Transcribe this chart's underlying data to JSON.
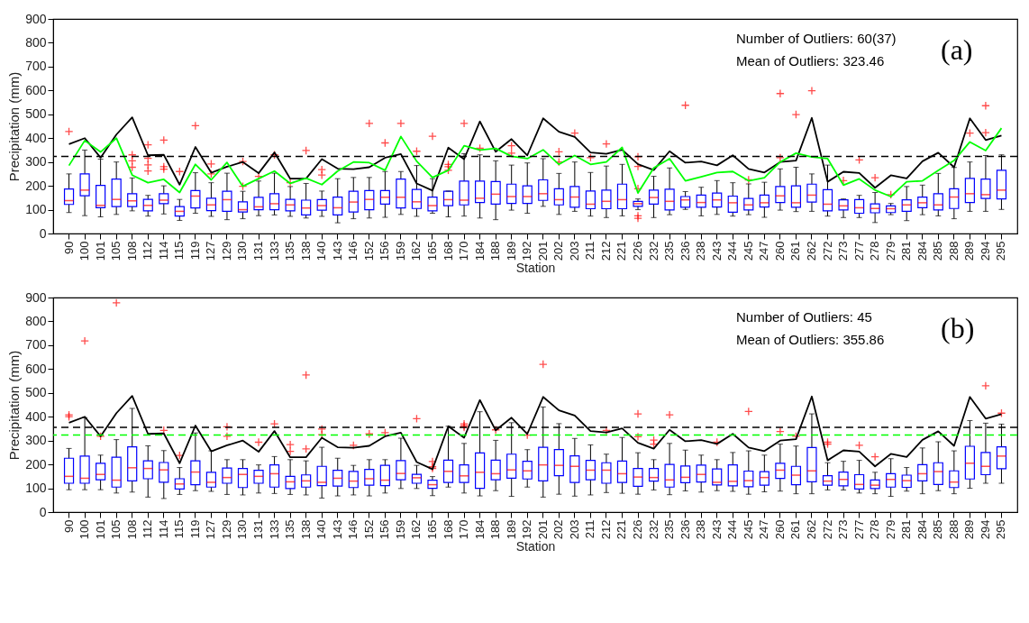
{
  "chart_data": [
    {
      "type": "box",
      "xlabel": "Station",
      "ylabel": "Precipitation (mm)",
      "ylim": [
        0,
        900
      ],
      "yticks": [
        0,
        100,
        200,
        300,
        400,
        500,
        600,
        700,
        800,
        900
      ],
      "grid": false,
      "categories": [
        "90",
        "100",
        "101",
        "105",
        "108",
        "112",
        "114",
        "115",
        "119",
        "127",
        "129",
        "130",
        "131",
        "133",
        "135",
        "138",
        "140",
        "143",
        "146",
        "152",
        "156",
        "159",
        "162",
        "165",
        "168",
        "170",
        "184",
        "188",
        "189",
        "192",
        "201",
        "202",
        "203",
        "211",
        "212",
        "221",
        "226",
        "232",
        "235",
        "236",
        "238",
        "243",
        "244",
        "245",
        "247",
        "260",
        "261",
        "262",
        "272",
        "273",
        "277",
        "278",
        "279",
        "281",
        "284",
        "285",
        "288",
        "289",
        "294",
        "295"
      ],
      "series": [
        {
          "type": "box",
          "color": "#0000ff",
          "boxes": [
            {
              "low": 88,
              "q1": 122,
              "median": 138,
              "q3": 187,
              "high": 250,
              "outliers": [
                428
              ]
            },
            {
              "low": 75,
              "q1": 158,
              "median": 182,
              "q3": 250,
              "high": 350
            },
            {
              "low": 70,
              "q1": 108,
              "median": 118,
              "q3": 202,
              "high": 312
            },
            {
              "low": 80,
              "q1": 113,
              "median": 143,
              "q3": 228,
              "high": 300
            },
            {
              "low": 95,
              "q1": 113,
              "median": 137,
              "q3": 167,
              "high": 233,
              "outliers": [
                330,
                305,
                278
              ]
            },
            {
              "low": 73,
              "q1": 95,
              "median": 118,
              "q3": 143,
              "high": 160,
              "outliers": [
                372,
                315,
                288,
                262
              ]
            },
            {
              "low": 82,
              "q1": 125,
              "median": 140,
              "q3": 167,
              "high": 200,
              "outliers": [
                392,
                280,
                270
              ]
            },
            {
              "low": 55,
              "q1": 73,
              "median": 93,
              "q3": 113,
              "high": 143,
              "outliers": [
                260
              ]
            },
            {
              "low": 85,
              "q1": 107,
              "median": 157,
              "q3": 180,
              "high": 255,
              "outliers": [
                452
              ]
            },
            {
              "low": 72,
              "q1": 96,
              "median": 120,
              "q3": 148,
              "high": 213,
              "outliers": [
                292,
                250
              ]
            },
            {
              "low": 58,
              "q1": 93,
              "median": 142,
              "q3": 177,
              "high": 253
            },
            {
              "low": 62,
              "q1": 90,
              "median": 100,
              "q3": 133,
              "high": 177,
              "outliers": [
                302,
                198
              ]
            },
            {
              "low": 75,
              "q1": 100,
              "median": 112,
              "q3": 152,
              "high": 220,
              "outliers": [
                240
              ]
            },
            {
              "low": 78,
              "q1": 100,
              "median": 125,
              "q3": 167,
              "high": 253,
              "outliers": [
                330
              ]
            },
            {
              "low": 72,
              "q1": 95,
              "median": 120,
              "q3": 143,
              "high": 197,
              "outliers": [
                213
              ]
            },
            {
              "low": 65,
              "q1": 78,
              "median": 107,
              "q3": 140,
              "high": 210,
              "outliers": [
                348
              ]
            },
            {
              "low": 72,
              "q1": 98,
              "median": 117,
              "q3": 142,
              "high": 178,
              "outliers": [
                268,
                245
              ]
            },
            {
              "low": 45,
              "q1": 78,
              "median": 108,
              "q3": 153,
              "high": 230
            },
            {
              "low": 62,
              "q1": 90,
              "median": 132,
              "q3": 177,
              "high": 235
            },
            {
              "low": 65,
              "q1": 100,
              "median": 143,
              "q3": 180,
              "high": 235,
              "outliers": [
                462
              ]
            },
            {
              "low": 68,
              "q1": 123,
              "median": 152,
              "q3": 180,
              "high": 260,
              "outliers": [
                380
              ]
            },
            {
              "low": 80,
              "q1": 107,
              "median": 152,
              "q3": 228,
              "high": 260,
              "outliers": [
                462
              ]
            },
            {
              "low": 72,
              "q1": 105,
              "median": 133,
              "q3": 185,
              "high": 285,
              "outliers": [
                345
              ]
            },
            {
              "low": 85,
              "q1": 95,
              "median": 117,
              "q3": 153,
              "high": 230,
              "outliers": [
                408
              ]
            },
            {
              "low": 70,
              "q1": 117,
              "median": 142,
              "q3": 177,
              "high": 178,
              "outliers": [
                290,
                280,
                265
              ]
            },
            {
              "low": 73,
              "q1": 120,
              "median": 140,
              "q3": 220,
              "high": 335,
              "outliers": [
                462
              ]
            },
            {
              "low": 65,
              "q1": 130,
              "median": 148,
              "q3": 220,
              "high": 330,
              "outliers": [
                358
              ]
            },
            {
              "low": 58,
              "q1": 123,
              "median": 165,
              "q3": 218,
              "high": 305
            },
            {
              "low": 98,
              "q1": 126,
              "median": 155,
              "q3": 207,
              "high": 287,
              "outliers": [
                368,
                337
              ]
            },
            {
              "low": 85,
              "q1": 126,
              "median": 155,
              "q3": 200,
              "high": 296
            },
            {
              "low": 114,
              "q1": 139,
              "median": 167,
              "q3": 225,
              "high": 314
            },
            {
              "low": 80,
              "q1": 120,
              "median": 142,
              "q3": 188,
              "high": 252,
              "outliers": [
                343,
                300
              ]
            },
            {
              "low": 93,
              "q1": 110,
              "median": 153,
              "q3": 197,
              "high": 300,
              "outliers": [
                421
              ]
            },
            {
              "low": 73,
              "q1": 104,
              "median": 123,
              "q3": 178,
              "high": 256,
              "outliers": [
                318
              ]
            },
            {
              "low": 67,
              "q1": 104,
              "median": 135,
              "q3": 182,
              "high": 283,
              "outliers": [
                376
              ]
            },
            {
              "low": 74,
              "q1": 104,
              "median": 142,
              "q3": 207,
              "high": 290
            },
            {
              "low": 100,
              "q1": 114,
              "median": 125,
              "q3": 135,
              "high": 145,
              "outliers": [
                322,
                281,
                188,
                74,
                64
              ]
            },
            {
              "low": 67,
              "q1": 123,
              "median": 151,
              "q3": 182,
              "high": 240
            },
            {
              "low": 79,
              "q1": 99,
              "median": 135,
              "q3": 186,
              "high": 275
            },
            {
              "low": 101,
              "q1": 110,
              "median": 141,
              "q3": 155,
              "high": 176,
              "outliers": [
                538
              ]
            },
            {
              "low": 74,
              "q1": 110,
              "median": 130,
              "q3": 161,
              "high": 194
            },
            {
              "low": 80,
              "q1": 111,
              "median": 141,
              "q3": 170,
              "high": 222
            },
            {
              "low": 73,
              "q1": 89,
              "median": 129,
              "q3": 157,
              "high": 213
            },
            {
              "low": 79,
              "q1": 99,
              "median": 120,
              "q3": 147,
              "high": 208,
              "outliers": [
                225
              ]
            },
            {
              "low": 68,
              "q1": 111,
              "median": 129,
              "q3": 161,
              "high": 215
            },
            {
              "low": 98,
              "q1": 130,
              "median": 158,
              "q3": 197,
              "high": 271,
              "outliers": [
                587,
                318
              ]
            },
            {
              "low": 92,
              "q1": 110,
              "median": 129,
              "q3": 200,
              "high": 278,
              "outliers": [
                499
              ]
            },
            {
              "low": 93,
              "q1": 132,
              "median": 161,
              "q3": 207,
              "high": 250,
              "outliers": [
                599
              ]
            },
            {
              "low": 73,
              "q1": 95,
              "median": 123,
              "q3": 184,
              "high": 287
            },
            {
              "low": 67,
              "q1": 99,
              "median": 116,
              "q3": 141,
              "high": 145,
              "outliers": [
                222
              ]
            },
            {
              "low": 67,
              "q1": 85,
              "median": 108,
              "q3": 142,
              "high": 160,
              "outliers": [
                309
              ]
            },
            {
              "low": 46,
              "q1": 87,
              "median": 105,
              "q3": 124,
              "high": 172,
              "outliers": [
                234
              ]
            },
            {
              "low": 79,
              "q1": 88,
              "median": 104,
              "q3": 116,
              "high": 126,
              "outliers": [
                163
              ]
            },
            {
              "low": 54,
              "q1": 93,
              "median": 120,
              "q3": 141,
              "high": 197
            },
            {
              "low": 79,
              "q1": 108,
              "median": 129,
              "q3": 153,
              "high": 203
            },
            {
              "low": 74,
              "q1": 99,
              "median": 120,
              "q3": 167,
              "high": 252
            },
            {
              "low": 62,
              "q1": 105,
              "median": 153,
              "q3": 188,
              "high": 277
            },
            {
              "low": 93,
              "q1": 130,
              "median": 167,
              "q3": 231,
              "high": 300,
              "outliers": [
                421
              ]
            },
            {
              "low": 93,
              "q1": 147,
              "median": 163,
              "q3": 228,
              "high": 327,
              "outliers": [
                536,
                423
              ]
            },
            {
              "low": 101,
              "q1": 145,
              "median": 182,
              "q3": 265,
              "high": 330
            }
          ]
        },
        {
          "type": "line",
          "color": "#000000",
          "values": [
            375,
            400,
            318,
            415,
            487,
            328,
            330,
            205,
            363,
            255,
            280,
            300,
            253,
            340,
            230,
            230,
            312,
            272,
            270,
            278,
            318,
            333,
            210,
            180,
            360,
            312,
            470,
            343,
            396,
            328,
            483,
            427,
            405,
            340,
            334,
            351,
            291,
            266,
            345,
            297,
            302,
            286,
            328,
            271,
            256,
            300,
            306,
            485,
            217,
            259,
            254,
            192,
            244,
            231,
            303,
            339,
            278,
            483,
            392,
            411
          ]
        },
        {
          "type": "line",
          "color": "#00ff00",
          "values": [
            285,
            390,
            342,
            400,
            245,
            213,
            227,
            172,
            290,
            225,
            298,
            198,
            230,
            262,
            210,
            232,
            205,
            262,
            300,
            297,
            265,
            407,
            303,
            235,
            265,
            368,
            350,
            357,
            324,
            314,
            351,
            290,
            327,
            290,
            300,
            361,
            170,
            275,
            314,
            221,
            238,
            256,
            260,
            221,
            234,
            300,
            337,
            321,
            314,
            203,
            229,
            182,
            155,
            217,
            221,
            265,
            306,
            384,
            348,
            442
          ]
        }
      ],
      "ref_lines": [
        {
          "axis": "y",
          "value": 323.46,
          "color": "#000000",
          "line_style": "dashed"
        }
      ],
      "annotations": [
        "Number of Outliers: 60(37)",
        "Mean of Outliers: 323.46",
        "(a)"
      ]
    },
    {
      "type": "box",
      "xlabel": "Station",
      "ylabel": "Precipitation (mm)",
      "ylim": [
        0,
        900
      ],
      "yticks": [
        0,
        100,
        200,
        300,
        400,
        500,
        600,
        700,
        800,
        900
      ],
      "grid": false,
      "categories": [
        "90",
        "100",
        "101",
        "105",
        "108",
        "112",
        "114",
        "115",
        "119",
        "127",
        "129",
        "130",
        "131",
        "133",
        "135",
        "138",
        "140",
        "143",
        "146",
        "152",
        "156",
        "159",
        "162",
        "165",
        "168",
        "170",
        "184",
        "188",
        "189",
        "192",
        "201",
        "202",
        "203",
        "211",
        "212",
        "221",
        "226",
        "232",
        "235",
        "236",
        "238",
        "243",
        "244",
        "245",
        "247",
        "260",
        "261",
        "262",
        "272",
        "273",
        "277",
        "278",
        "279",
        "281",
        "284",
        "285",
        "288",
        "289",
        "294",
        "295"
      ],
      "series": [
        {
          "type": "box",
          "color": "#0000ff",
          "boxes": [
            {
              "low": 94,
              "q1": 121,
              "median": 150,
              "q3": 226,
              "high": 267,
              "outliers": [
                408,
                400
              ]
            },
            {
              "low": 94,
              "q1": 121,
              "median": 142,
              "q3": 235,
              "high": 396,
              "outliers": [
                718
              ]
            },
            {
              "low": 94,
              "q1": 136,
              "median": 158,
              "q3": 205,
              "high": 239,
              "outliers": [
                318
              ]
            },
            {
              "low": 80,
              "q1": 105,
              "median": 134,
              "q3": 230,
              "high": 304,
              "outliers": [
                878
              ]
            },
            {
              "low": 84,
              "q1": 131,
              "median": 186,
              "q3": 274,
              "high": 435
            },
            {
              "low": 63,
              "q1": 140,
              "median": 183,
              "q3": 215,
              "high": 278
            },
            {
              "low": 57,
              "q1": 125,
              "median": 177,
              "q3": 208,
              "high": 258,
              "outliers": [
                343
              ]
            },
            {
              "low": 74,
              "q1": 97,
              "median": 118,
              "q3": 140,
              "high": 187,
              "outliers": [
                238
              ]
            },
            {
              "low": 90,
              "q1": 115,
              "median": 168,
              "q3": 215,
              "high": 332
            },
            {
              "low": 87,
              "q1": 105,
              "median": 125,
              "q3": 167,
              "high": 257
            },
            {
              "low": 74,
              "q1": 121,
              "median": 145,
              "q3": 185,
              "high": 220,
              "outliers": [
                358,
                318
              ]
            },
            {
              "low": 72,
              "q1": 103,
              "median": 158,
              "q3": 183,
              "high": 220
            },
            {
              "low": 80,
              "q1": 121,
              "median": 150,
              "q3": 175,
              "high": 198,
              "outliers": [
                293
              ]
            },
            {
              "low": 78,
              "q1": 105,
              "median": 161,
              "q3": 198,
              "high": 233,
              "outliers": [
                370
              ]
            },
            {
              "low": 74,
              "q1": 99,
              "median": 127,
              "q3": 150,
              "high": 220,
              "outliers": [
                283,
                255
              ]
            },
            {
              "low": 72,
              "q1": 105,
              "median": 131,
              "q3": 156,
              "high": 215,
              "outliers": [
                575,
                265
              ]
            },
            {
              "low": 59,
              "q1": 111,
              "median": 125,
              "q3": 192,
              "high": 272,
              "outliers": [
                348,
                325
              ]
            },
            {
              "low": 68,
              "q1": 109,
              "median": 142,
              "q3": 175,
              "high": 226
            },
            {
              "low": 72,
              "q1": 103,
              "median": 130,
              "q3": 171,
              "high": 196,
              "outliers": [
                280
              ]
            },
            {
              "low": 68,
              "q1": 113,
              "median": 140,
              "q3": 179,
              "high": 220,
              "outliers": [
                328
              ]
            },
            {
              "low": 80,
              "q1": 111,
              "median": 134,
              "q3": 196,
              "high": 220,
              "outliers": [
                333
              ]
            },
            {
              "low": 99,
              "q1": 136,
              "median": 162,
              "q3": 216,
              "high": 310
            },
            {
              "low": 99,
              "q1": 121,
              "median": 144,
              "q3": 158,
              "high": 196,
              "outliers": [
                392
              ]
            },
            {
              "low": 69,
              "q1": 100,
              "median": 115,
              "q3": 134,
              "high": 149,
              "outliers": [
                212,
                190,
                183
              ]
            },
            {
              "low": 105,
              "q1": 124,
              "median": 171,
              "q3": 218,
              "high": 360
            },
            {
              "low": 80,
              "q1": 124,
              "median": 152,
              "q3": 198,
              "high": 288,
              "outliers": [
                370,
                362,
                355
              ]
            },
            {
              "low": 68,
              "q1": 100,
              "median": 167,
              "q3": 248,
              "high": 421
            },
            {
              "low": 90,
              "q1": 136,
              "median": 161,
              "q3": 218,
              "high": 301,
              "outliers": [
                345
              ]
            },
            {
              "low": 66,
              "q1": 142,
              "median": 177,
              "q3": 243,
              "high": 375
            },
            {
              "low": 105,
              "q1": 139,
              "median": 173,
              "q3": 213,
              "high": 262,
              "outliers": [
                323
              ]
            },
            {
              "low": 63,
              "q1": 131,
              "median": 198,
              "q3": 272,
              "high": 441,
              "outliers": [
                620
              ]
            },
            {
              "low": 75,
              "q1": 153,
              "median": 196,
              "q3": 262,
              "high": 371
            },
            {
              "low": 67,
              "q1": 124,
              "median": 192,
              "q3": 236,
              "high": 309
            },
            {
              "low": 72,
              "q1": 136,
              "median": 176,
              "q3": 217,
              "high": 282
            },
            {
              "low": 82,
              "q1": 121,
              "median": 176,
              "q3": 207,
              "high": 243,
              "outliers": [
                343
              ]
            },
            {
              "low": 79,
              "q1": 124,
              "median": 161,
              "q3": 214,
              "high": 313
            },
            {
              "low": 75,
              "q1": 108,
              "median": 147,
              "q3": 183,
              "high": 249,
              "outliers": [
                412,
                316
              ]
            },
            {
              "low": 93,
              "q1": 130,
              "median": 145,
              "q3": 183,
              "high": 220,
              "outliers": [
                302,
                285
              ]
            },
            {
              "low": 73,
              "q1": 105,
              "median": 135,
              "q3": 200,
              "high": 288,
              "outliers": [
                408
              ]
            },
            {
              "low": 89,
              "q1": 123,
              "median": 146,
              "q3": 193,
              "high": 260
            },
            {
              "low": 84,
              "q1": 126,
              "median": 158,
              "q3": 197,
              "high": 239
            },
            {
              "low": 90,
              "q1": 114,
              "median": 125,
              "q3": 181,
              "high": 220,
              "outliers": [
                293
              ]
            },
            {
              "low": 87,
              "q1": 110,
              "median": 129,
              "q3": 198,
              "high": 250
            },
            {
              "low": 75,
              "q1": 106,
              "median": 132,
              "q3": 172,
              "high": 257,
              "outliers": [
                422
              ]
            },
            {
              "low": 85,
              "q1": 113,
              "median": 145,
              "q3": 170,
              "high": 239
            },
            {
              "low": 88,
              "q1": 141,
              "median": 176,
              "q3": 205,
              "high": 285,
              "outliers": [
                338
              ]
            },
            {
              "low": 77,
              "q1": 115,
              "median": 155,
              "q3": 192,
              "high": 277,
              "outliers": [
                318
              ]
            },
            {
              "low": 77,
              "q1": 127,
              "median": 173,
              "q3": 271,
              "high": 412
            },
            {
              "low": 93,
              "q1": 113,
              "median": 130,
              "q3": 153,
              "high": 207,
              "outliers": [
                293,
                285
              ]
            },
            {
              "low": 93,
              "q1": 110,
              "median": 137,
              "q3": 168,
              "high": 213
            },
            {
              "low": 80,
              "q1": 97,
              "median": 116,
              "q3": 157,
              "high": 217,
              "outliers": [
                280
              ]
            },
            {
              "low": 77,
              "q1": 99,
              "median": 113,
              "q3": 135,
              "high": 167,
              "outliers": [
                232
              ]
            },
            {
              "low": 66,
              "q1": 105,
              "median": 137,
              "q3": 161,
              "high": 224
            },
            {
              "low": 88,
              "q1": 104,
              "median": 132,
              "q3": 155,
              "high": 187
            },
            {
              "low": 77,
              "q1": 131,
              "median": 161,
              "q3": 199,
              "high": 269
            },
            {
              "low": 90,
              "q1": 116,
              "median": 170,
              "q3": 207,
              "high": 295
            },
            {
              "low": 77,
              "q1": 103,
              "median": 126,
              "q3": 173,
              "high": 257
            },
            {
              "low": 100,
              "q1": 139,
              "median": 205,
              "q3": 276,
              "high": 384
            },
            {
              "low": 121,
              "q1": 157,
              "median": 192,
              "q3": 250,
              "high": 373,
              "outliers": [
                530
              ]
            },
            {
              "low": 121,
              "q1": 182,
              "median": 235,
              "q3": 274,
              "high": 369,
              "outliers": [
                415
              ]
            }
          ]
        },
        {
          "type": "line",
          "color": "#000000",
          "values": [
            375,
            400,
            318,
            415,
            487,
            328,
            330,
            205,
            363,
            255,
            280,
            300,
            253,
            340,
            230,
            230,
            312,
            272,
            270,
            278,
            318,
            333,
            210,
            180,
            360,
            312,
            470,
            343,
            396,
            328,
            483,
            427,
            405,
            340,
            334,
            351,
            291,
            266,
            345,
            297,
            302,
            286,
            328,
            271,
            256,
            300,
            306,
            485,
            217,
            259,
            254,
            192,
            244,
            231,
            303,
            339,
            278,
            483,
            392,
            411
          ]
        }
      ],
      "ref_lines": [
        {
          "axis": "y",
          "value": 355.86,
          "color": "#000000",
          "line_style": "dashed"
        },
        {
          "axis": "y",
          "value": 323.46,
          "color": "#00ff00",
          "line_style": "dashed"
        }
      ],
      "annotations": [
        "Number of Outliers: 45",
        "Mean of Outliers: 355.86",
        "(b)"
      ]
    }
  ]
}
